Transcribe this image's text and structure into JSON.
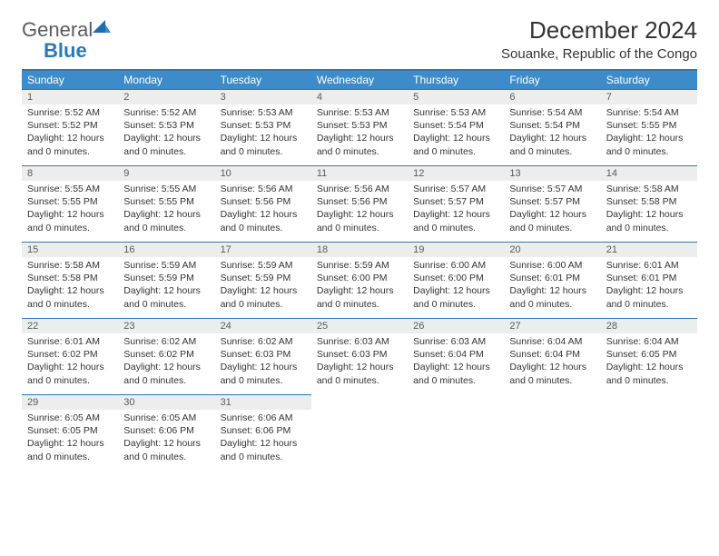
{
  "logo": {
    "word1": "General",
    "word2": "Blue"
  },
  "title": "December 2024",
  "location": "Souanke, Republic of the Congo",
  "colors": {
    "header_bg": "#3d8bc8",
    "rule": "#2a7ab8",
    "daynum_bg": "#eceded",
    "text": "#333333",
    "logo_gray": "#5c5c5c",
    "logo_blue": "#2a7ab8"
  },
  "day_headers": [
    "Sunday",
    "Monday",
    "Tuesday",
    "Wednesday",
    "Thursday",
    "Friday",
    "Saturday"
  ],
  "days": [
    {
      "n": 1,
      "sunrise": "5:52 AM",
      "sunset": "5:52 PM",
      "daylight": "12 hours and 0 minutes."
    },
    {
      "n": 2,
      "sunrise": "5:52 AM",
      "sunset": "5:53 PM",
      "daylight": "12 hours and 0 minutes."
    },
    {
      "n": 3,
      "sunrise": "5:53 AM",
      "sunset": "5:53 PM",
      "daylight": "12 hours and 0 minutes."
    },
    {
      "n": 4,
      "sunrise": "5:53 AM",
      "sunset": "5:53 PM",
      "daylight": "12 hours and 0 minutes."
    },
    {
      "n": 5,
      "sunrise": "5:53 AM",
      "sunset": "5:54 PM",
      "daylight": "12 hours and 0 minutes."
    },
    {
      "n": 6,
      "sunrise": "5:54 AM",
      "sunset": "5:54 PM",
      "daylight": "12 hours and 0 minutes."
    },
    {
      "n": 7,
      "sunrise": "5:54 AM",
      "sunset": "5:55 PM",
      "daylight": "12 hours and 0 minutes."
    },
    {
      "n": 8,
      "sunrise": "5:55 AM",
      "sunset": "5:55 PM",
      "daylight": "12 hours and 0 minutes."
    },
    {
      "n": 9,
      "sunrise": "5:55 AM",
      "sunset": "5:55 PM",
      "daylight": "12 hours and 0 minutes."
    },
    {
      "n": 10,
      "sunrise": "5:56 AM",
      "sunset": "5:56 PM",
      "daylight": "12 hours and 0 minutes."
    },
    {
      "n": 11,
      "sunrise": "5:56 AM",
      "sunset": "5:56 PM",
      "daylight": "12 hours and 0 minutes."
    },
    {
      "n": 12,
      "sunrise": "5:57 AM",
      "sunset": "5:57 PM",
      "daylight": "12 hours and 0 minutes."
    },
    {
      "n": 13,
      "sunrise": "5:57 AM",
      "sunset": "5:57 PM",
      "daylight": "12 hours and 0 minutes."
    },
    {
      "n": 14,
      "sunrise": "5:58 AM",
      "sunset": "5:58 PM",
      "daylight": "12 hours and 0 minutes."
    },
    {
      "n": 15,
      "sunrise": "5:58 AM",
      "sunset": "5:58 PM",
      "daylight": "12 hours and 0 minutes."
    },
    {
      "n": 16,
      "sunrise": "5:59 AM",
      "sunset": "5:59 PM",
      "daylight": "12 hours and 0 minutes."
    },
    {
      "n": 17,
      "sunrise": "5:59 AM",
      "sunset": "5:59 PM",
      "daylight": "12 hours and 0 minutes."
    },
    {
      "n": 18,
      "sunrise": "5:59 AM",
      "sunset": "6:00 PM",
      "daylight": "12 hours and 0 minutes."
    },
    {
      "n": 19,
      "sunrise": "6:00 AM",
      "sunset": "6:00 PM",
      "daylight": "12 hours and 0 minutes."
    },
    {
      "n": 20,
      "sunrise": "6:00 AM",
      "sunset": "6:01 PM",
      "daylight": "12 hours and 0 minutes."
    },
    {
      "n": 21,
      "sunrise": "6:01 AM",
      "sunset": "6:01 PM",
      "daylight": "12 hours and 0 minutes."
    },
    {
      "n": 22,
      "sunrise": "6:01 AM",
      "sunset": "6:02 PM",
      "daylight": "12 hours and 0 minutes."
    },
    {
      "n": 23,
      "sunrise": "6:02 AM",
      "sunset": "6:02 PM",
      "daylight": "12 hours and 0 minutes."
    },
    {
      "n": 24,
      "sunrise": "6:02 AM",
      "sunset": "6:03 PM",
      "daylight": "12 hours and 0 minutes."
    },
    {
      "n": 25,
      "sunrise": "6:03 AM",
      "sunset": "6:03 PM",
      "daylight": "12 hours and 0 minutes."
    },
    {
      "n": 26,
      "sunrise": "6:03 AM",
      "sunset": "6:04 PM",
      "daylight": "12 hours and 0 minutes."
    },
    {
      "n": 27,
      "sunrise": "6:04 AM",
      "sunset": "6:04 PM",
      "daylight": "12 hours and 0 minutes."
    },
    {
      "n": 28,
      "sunrise": "6:04 AM",
      "sunset": "6:05 PM",
      "daylight": "12 hours and 0 minutes."
    },
    {
      "n": 29,
      "sunrise": "6:05 AM",
      "sunset": "6:05 PM",
      "daylight": "12 hours and 0 minutes."
    },
    {
      "n": 30,
      "sunrise": "6:05 AM",
      "sunset": "6:06 PM",
      "daylight": "12 hours and 0 minutes."
    },
    {
      "n": 31,
      "sunrise": "6:06 AM",
      "sunset": "6:06 PM",
      "daylight": "12 hours and 0 minutes."
    }
  ],
  "labels": {
    "sunrise": "Sunrise:",
    "sunset": "Sunset:",
    "daylight": "Daylight:"
  },
  "trailing_blanks": 4
}
